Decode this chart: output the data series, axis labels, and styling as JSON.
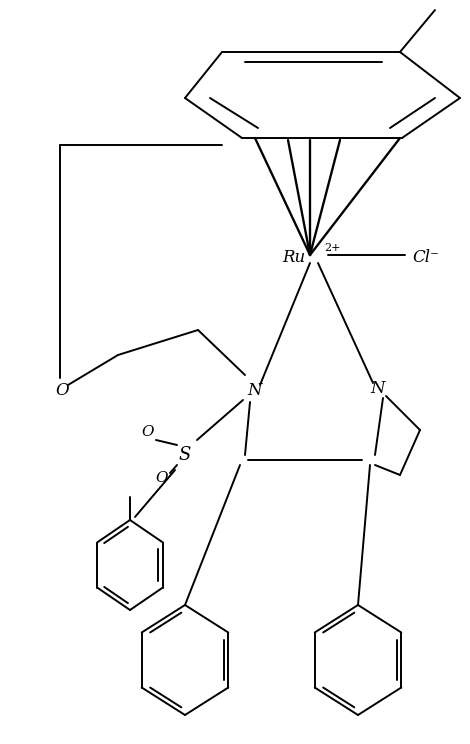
{
  "background": "#ffffff",
  "line_color": "#000000",
  "lw": 1.4,
  "figsize": [
    4.7,
    7.44
  ],
  "dpi": 100,
  "ru": [
    0.6,
    0.72
  ],
  "cl_text": "Cl⁻",
  "ru_text": "Ru",
  "charge_text": "2+"
}
